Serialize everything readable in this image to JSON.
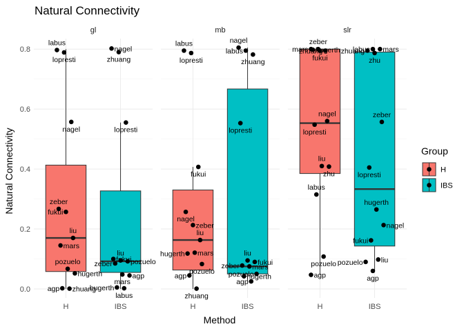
{
  "chart_data": {
    "type": "boxplot",
    "title": "Natural Connectivity",
    "xlabel": "Method",
    "ylabel": "Natural Connectivity",
    "ylim": [
      -0.03,
      0.835
    ],
    "yticks": [
      0.0,
      0.2,
      0.4,
      0.6,
      0.8
    ],
    "ytick_labels": [
      "0.0",
      "0.2",
      "0.4",
      "0.6",
      "0.8"
    ],
    "categories": [
      "H",
      "IBS"
    ],
    "grid": true,
    "legend": {
      "title": "Group",
      "position": "right",
      "items": [
        {
          "label": "H",
          "color": "#F8766D"
        },
        {
          "label": "IBS",
          "color": "#00BFC4"
        }
      ]
    },
    "panels": [
      {
        "strip": "gl",
        "boxes": [
          {
            "group": "H",
            "q1": 0.058,
            "median": 0.17,
            "q3": 0.413,
            "whisker_low": 0.0,
            "whisker_high": 0.8
          },
          {
            "group": "IBS",
            "q1": 0.055,
            "median": 0.092,
            "q3": 0.327,
            "whisker_low": 0.0,
            "whisker_high": 0.555
          }
        ],
        "points": [
          {
            "group": "H",
            "label": "labus",
            "y": 0.797
          },
          {
            "group": "H",
            "label": "lopresti",
            "y": 0.789
          },
          {
            "group": "H",
            "label": "nagel",
            "y": 0.557
          },
          {
            "group": "H",
            "label": "zeber",
            "y": 0.267
          },
          {
            "group": "H",
            "label": "fukui",
            "y": 0.257
          },
          {
            "group": "H",
            "label": "liu",
            "y": 0.17
          },
          {
            "group": "H",
            "label": "mars",
            "y": 0.145
          },
          {
            "group": "H",
            "label": "pozuelo",
            "y": 0.067
          },
          {
            "group": "H",
            "label": "hugerth",
            "y": 0.052
          },
          {
            "group": "H",
            "label": "agp",
            "y": 0.002
          },
          {
            "group": "H",
            "label": "zhuang",
            "y": 0.001
          },
          {
            "group": "IBS",
            "label": "nagel",
            "y": 0.802
          },
          {
            "group": "IBS",
            "label": "zhuang",
            "y": 0.79
          },
          {
            "group": "IBS",
            "label": "lopresti",
            "y": 0.555
          },
          {
            "group": "IBS",
            "label": "fukui",
            "y": 0.1
          },
          {
            "group": "IBS",
            "label": "liu",
            "y": 0.095
          },
          {
            "group": "IBS",
            "label": "pozuelo",
            "y": 0.092
          },
          {
            "group": "IBS",
            "label": "zeber",
            "y": 0.085
          },
          {
            "group": "IBS",
            "label": "mars",
            "y": 0.048
          },
          {
            "group": "IBS",
            "label": "agp",
            "y": 0.045
          },
          {
            "group": "IBS",
            "label": "hugerth",
            "y": 0.005
          },
          {
            "group": "IBS",
            "label": "labus",
            "y": 0.002
          }
        ]
      },
      {
        "strip": "mb",
        "boxes": [
          {
            "group": "H",
            "q1": 0.063,
            "median": 0.163,
            "q3": 0.33,
            "whisker_low": 0.0,
            "whisker_high": 0.407
          },
          {
            "group": "IBS",
            "q1": 0.05,
            "median": 0.075,
            "q3": 0.667,
            "whisker_low": 0.025,
            "whisker_high": 0.805
          }
        ],
        "points": [
          {
            "group": "H",
            "label": "labus",
            "y": 0.795
          },
          {
            "group": "H",
            "label": "lopresti",
            "y": 0.787
          },
          {
            "group": "H",
            "label": "fukui",
            "y": 0.407
          },
          {
            "group": "H",
            "label": "nagel",
            "y": 0.257
          },
          {
            "group": "H",
            "label": "zeber",
            "y": 0.213
          },
          {
            "group": "H",
            "label": "liu",
            "y": 0.163
          },
          {
            "group": "H",
            "label": "hugerth",
            "y": 0.118
          },
          {
            "group": "H",
            "label": "mars",
            "y": 0.121
          },
          {
            "group": "H",
            "label": "pozuelo",
            "y": 0.083
          },
          {
            "group": "H",
            "label": "agp",
            "y": 0.045
          },
          {
            "group": "H",
            "label": "zhuang",
            "y": 0.001
          },
          {
            "group": "IBS",
            "label": "nagel",
            "y": 0.805
          },
          {
            "group": "IBS",
            "label": "labus",
            "y": 0.795
          },
          {
            "group": "IBS",
            "label": "zhuang",
            "y": 0.782
          },
          {
            "group": "IBS",
            "label": "lopresti",
            "y": 0.553
          },
          {
            "group": "IBS",
            "label": "liu",
            "y": 0.095
          },
          {
            "group": "IBS",
            "label": "fukui",
            "y": 0.09
          },
          {
            "group": "IBS",
            "label": "zeber",
            "y": 0.078
          },
          {
            "group": "IBS",
            "label": "mars",
            "y": 0.075
          },
          {
            "group": "IBS",
            "label": "pozuelo",
            "y": 0.05
          },
          {
            "group": "IBS",
            "label": "hugerth",
            "y": 0.042
          },
          {
            "group": "IBS",
            "label": "agp",
            "y": 0.025
          }
        ]
      },
      {
        "strip": "slr",
        "boxes": [
          {
            "group": "H",
            "q1": 0.385,
            "median": 0.553,
            "q3": 0.8,
            "whisker_low": 0.047,
            "whisker_high": 0.8
          },
          {
            "group": "IBS",
            "q1": 0.143,
            "median": 0.333,
            "q3": 0.79,
            "whisker_low": 0.06,
            "whisker_high": 0.8
          }
        ],
        "points": [
          {
            "group": "H",
            "label": "mars",
            "y": 0.8
          },
          {
            "group": "H",
            "label": "zeber",
            "y": 0.8
          },
          {
            "group": "H",
            "label": "zhuang",
            "y": 0.795
          },
          {
            "group": "H",
            "label": "hugerth",
            "y": 0.798
          },
          {
            "group": "H",
            "label": "fukui",
            "y": 0.795
          },
          {
            "group": "H",
            "label": "nagel",
            "y": 0.56
          },
          {
            "group": "H",
            "label": "lopresti",
            "y": 0.548
          },
          {
            "group": "H",
            "label": "liu",
            "y": 0.41
          },
          {
            "group": "H",
            "label": "zhu",
            "y": 0.408
          },
          {
            "group": "H",
            "label": "labus",
            "y": 0.315
          },
          {
            "group": "H",
            "label": "pozuelo",
            "y": 0.108
          },
          {
            "group": "H",
            "label": "agp",
            "y": 0.047
          },
          {
            "group": "IBS",
            "label": "labus",
            "y": 0.8
          },
          {
            "group": "IBS",
            "label": "mars",
            "y": 0.8
          },
          {
            "group": "IBS",
            "label": "zhuang",
            "y": 0.795
          },
          {
            "group": "IBS",
            "label": "zhu",
            "y": 0.787
          },
          {
            "group": "IBS",
            "label": "zeber",
            "y": 0.557
          },
          {
            "group": "IBS",
            "label": "lopresti",
            "y": 0.405
          },
          {
            "group": "IBS",
            "label": "hugerth",
            "y": 0.265
          },
          {
            "group": "IBS",
            "label": "nagel",
            "y": 0.213
          },
          {
            "group": "IBS",
            "label": "fukui",
            "y": 0.162
          },
          {
            "group": "IBS",
            "label": "liu",
            "y": 0.098
          },
          {
            "group": "IBS",
            "label": "pozuelo",
            "y": 0.09
          },
          {
            "group": "IBS",
            "label": "agp",
            "y": 0.06
          }
        ]
      }
    ]
  }
}
